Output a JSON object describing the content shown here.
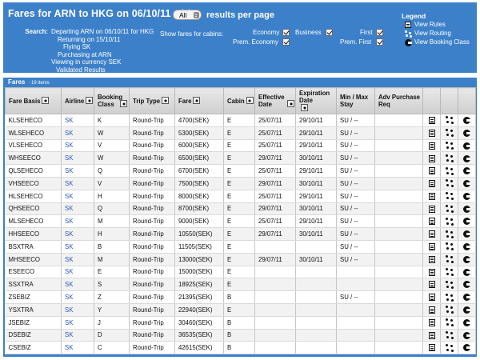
{
  "header": {
    "title": "Fares for ARN to HKG on 06/10/11 with",
    "per_page_value": "All",
    "per_page_suffix": "results per page",
    "search_label": "Search:",
    "search_lines": [
      "Departing ARN on 06/10/11 for HKG",
      "Returning on 15/10/11",
      "Flying SK",
      "Purchasing at ARN",
      "Viewing in currency SEK",
      "Validated Results"
    ],
    "cabins_label": "Show fares for cabins:",
    "cabins": [
      {
        "label": "Economy",
        "checked": true
      },
      {
        "label": "Business",
        "checked": true
      },
      {
        "label": "First",
        "checked": true
      },
      {
        "label": "Prem. Economy",
        "checked": true
      },
      {
        "label": "Prem. First",
        "checked": true
      }
    ]
  },
  "legend": {
    "title": "Legend",
    "items": [
      {
        "label": "View Rules",
        "icon": "rules-icon"
      },
      {
        "label": "View Routing",
        "icon": "routing-icon"
      },
      {
        "label": "View Booking Class",
        "icon": "booking-class-icon"
      }
    ]
  },
  "fares_bar": {
    "title": "Fares",
    "count": "· 19 items"
  },
  "columns": [
    "Fare Basis",
    "Airline",
    "Booking Class",
    "Trip Type",
    "Fare",
    "Cabin",
    "Effective Date",
    "Expiration Date",
    "Min / Max Stay",
    "Adv Purchase Req"
  ],
  "rows": [
    [
      "KLSEHECO",
      "SK",
      "K",
      "Round-Trip",
      "4700(SEK)",
      "E",
      "25/07/11",
      "29/10/11",
      "SU / --",
      ""
    ],
    [
      "WLSEHECO",
      "SK",
      "W",
      "Round-Trip",
      "5300(SEK)",
      "E",
      "25/07/11",
      "29/10/11",
      "SU / --",
      ""
    ],
    [
      "VLSEHECO",
      "SK",
      "V",
      "Round-Trip",
      "6000(SEK)",
      "E",
      "25/07/11",
      "29/10/11",
      "SU / --",
      ""
    ],
    [
      "WHSEECO",
      "SK",
      "W",
      "Round-Trip",
      "6500(SEK)",
      "E",
      "29/07/11",
      "30/10/11",
      "SU / --",
      ""
    ],
    [
      "QLSEHECO",
      "SK",
      "Q",
      "Round-Trip",
      "6700(SEK)",
      "E",
      "25/07/11",
      "29/10/11",
      "SU / --",
      ""
    ],
    [
      "VHSEECO",
      "SK",
      "V",
      "Round-Trip",
      "7500(SEK)",
      "E",
      "29/07/11",
      "30/10/11",
      "SU / --",
      ""
    ],
    [
      "HLSEHECO",
      "SK",
      "H",
      "Round-Trip",
      "8000(SEK)",
      "E",
      "25/07/11",
      "29/10/11",
      "SU / --",
      ""
    ],
    [
      "QHSEECO",
      "SK",
      "Q",
      "Round-Trip",
      "8700(SEK)",
      "E",
      "29/07/11",
      "30/10/11",
      "SU / --",
      ""
    ],
    [
      "MLSEHECO",
      "SK",
      "M",
      "Round-Trip",
      "9000(SEK)",
      "E",
      "25/07/11",
      "29/10/11",
      "SU / --",
      ""
    ],
    [
      "HHSEECO",
      "SK",
      "H",
      "Round-Trip",
      "10550(SEK)",
      "E",
      "29/07/11",
      "30/10/11",
      "SU / --",
      ""
    ],
    [
      "BSXTRA",
      "SK",
      "B",
      "Round-Trip",
      "11505(SEK)",
      "E",
      "",
      "",
      "SU / --",
      ""
    ],
    [
      "MHSEECO",
      "SK",
      "M",
      "Round-Trip",
      "13000(SEK)",
      "E",
      "29/07/11",
      "30/10/11",
      "SU / --",
      ""
    ],
    [
      "ESEECO",
      "SK",
      "E",
      "Round-Trip",
      "15000(SEK)",
      "E",
      "",
      "",
      "",
      ""
    ],
    [
      "SSXTRA",
      "SK",
      "S",
      "Round-Trip",
      "18925(SEK)",
      "E",
      "",
      "",
      "",
      ""
    ],
    [
      "ZSEBIZ",
      "SK",
      "Z",
      "Round-Trip",
      "21395(SEK)",
      "B",
      "",
      "",
      "SU / --",
      ""
    ],
    [
      "YSXTRA",
      "SK",
      "Y",
      "Round-Trip",
      "22940(SEK)",
      "E",
      "",
      "",
      "",
      ""
    ],
    [
      "JSEBIZ",
      "SK",
      "J",
      "Round-Trip",
      "30460(SEK)",
      "B",
      "",
      "",
      "",
      ""
    ],
    [
      "DSEBIZ",
      "SK",
      "D",
      "Round-Trip",
      "36535(SEK)",
      "B",
      "",
      "",
      "",
      ""
    ],
    [
      "CSEBIZ",
      "SK",
      "C",
      "Round-Trip",
      "42615(SEK)",
      "B",
      "",
      "",
      "",
      ""
    ]
  ]
}
